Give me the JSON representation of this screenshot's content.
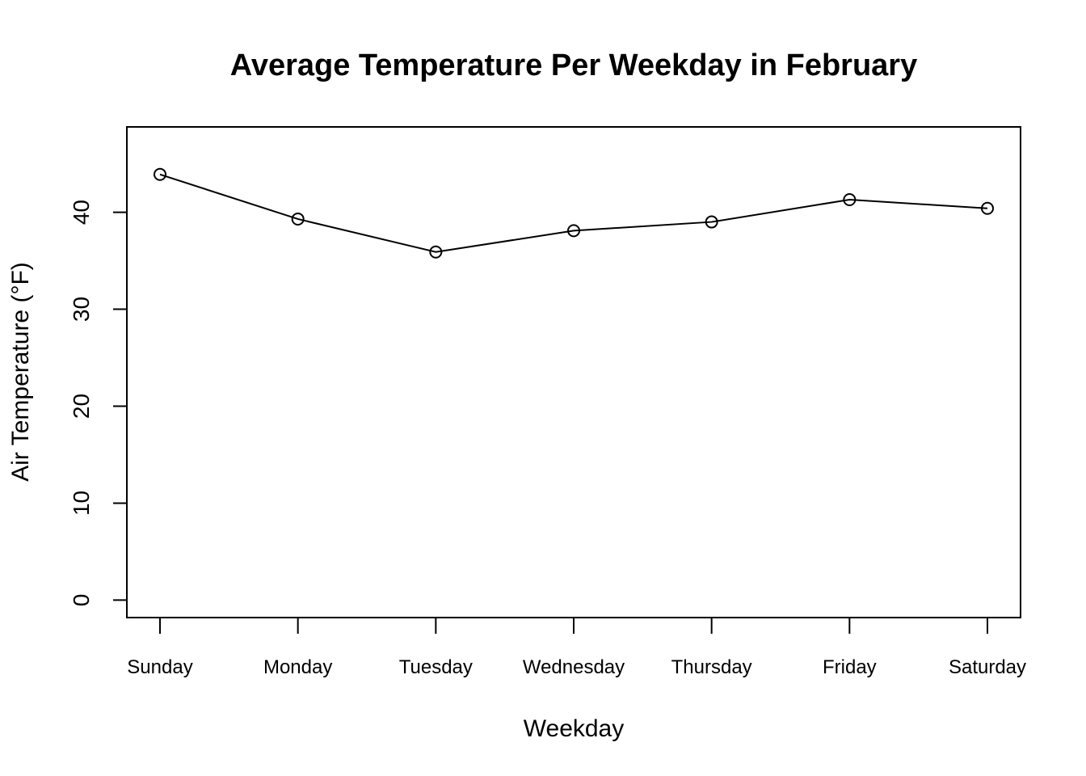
{
  "chart_data": {
    "type": "line",
    "title": "Average Temperature Per Weekday in February",
    "xlabel": "Weekday",
    "ylabel": "Air Temperature (°F)",
    "categories": [
      "Sunday",
      "Monday",
      "Tuesday",
      "Wednesday",
      "Thursday",
      "Friday",
      "Saturday"
    ],
    "values": [
      43.9,
      39.3,
      35.9,
      38.1,
      39.0,
      41.3,
      40.4
    ],
    "ylim": [
      -1.8,
      48.8
    ],
    "yticks": [
      0,
      10,
      20,
      30,
      40
    ],
    "markers": "open-circle",
    "grid": false
  }
}
